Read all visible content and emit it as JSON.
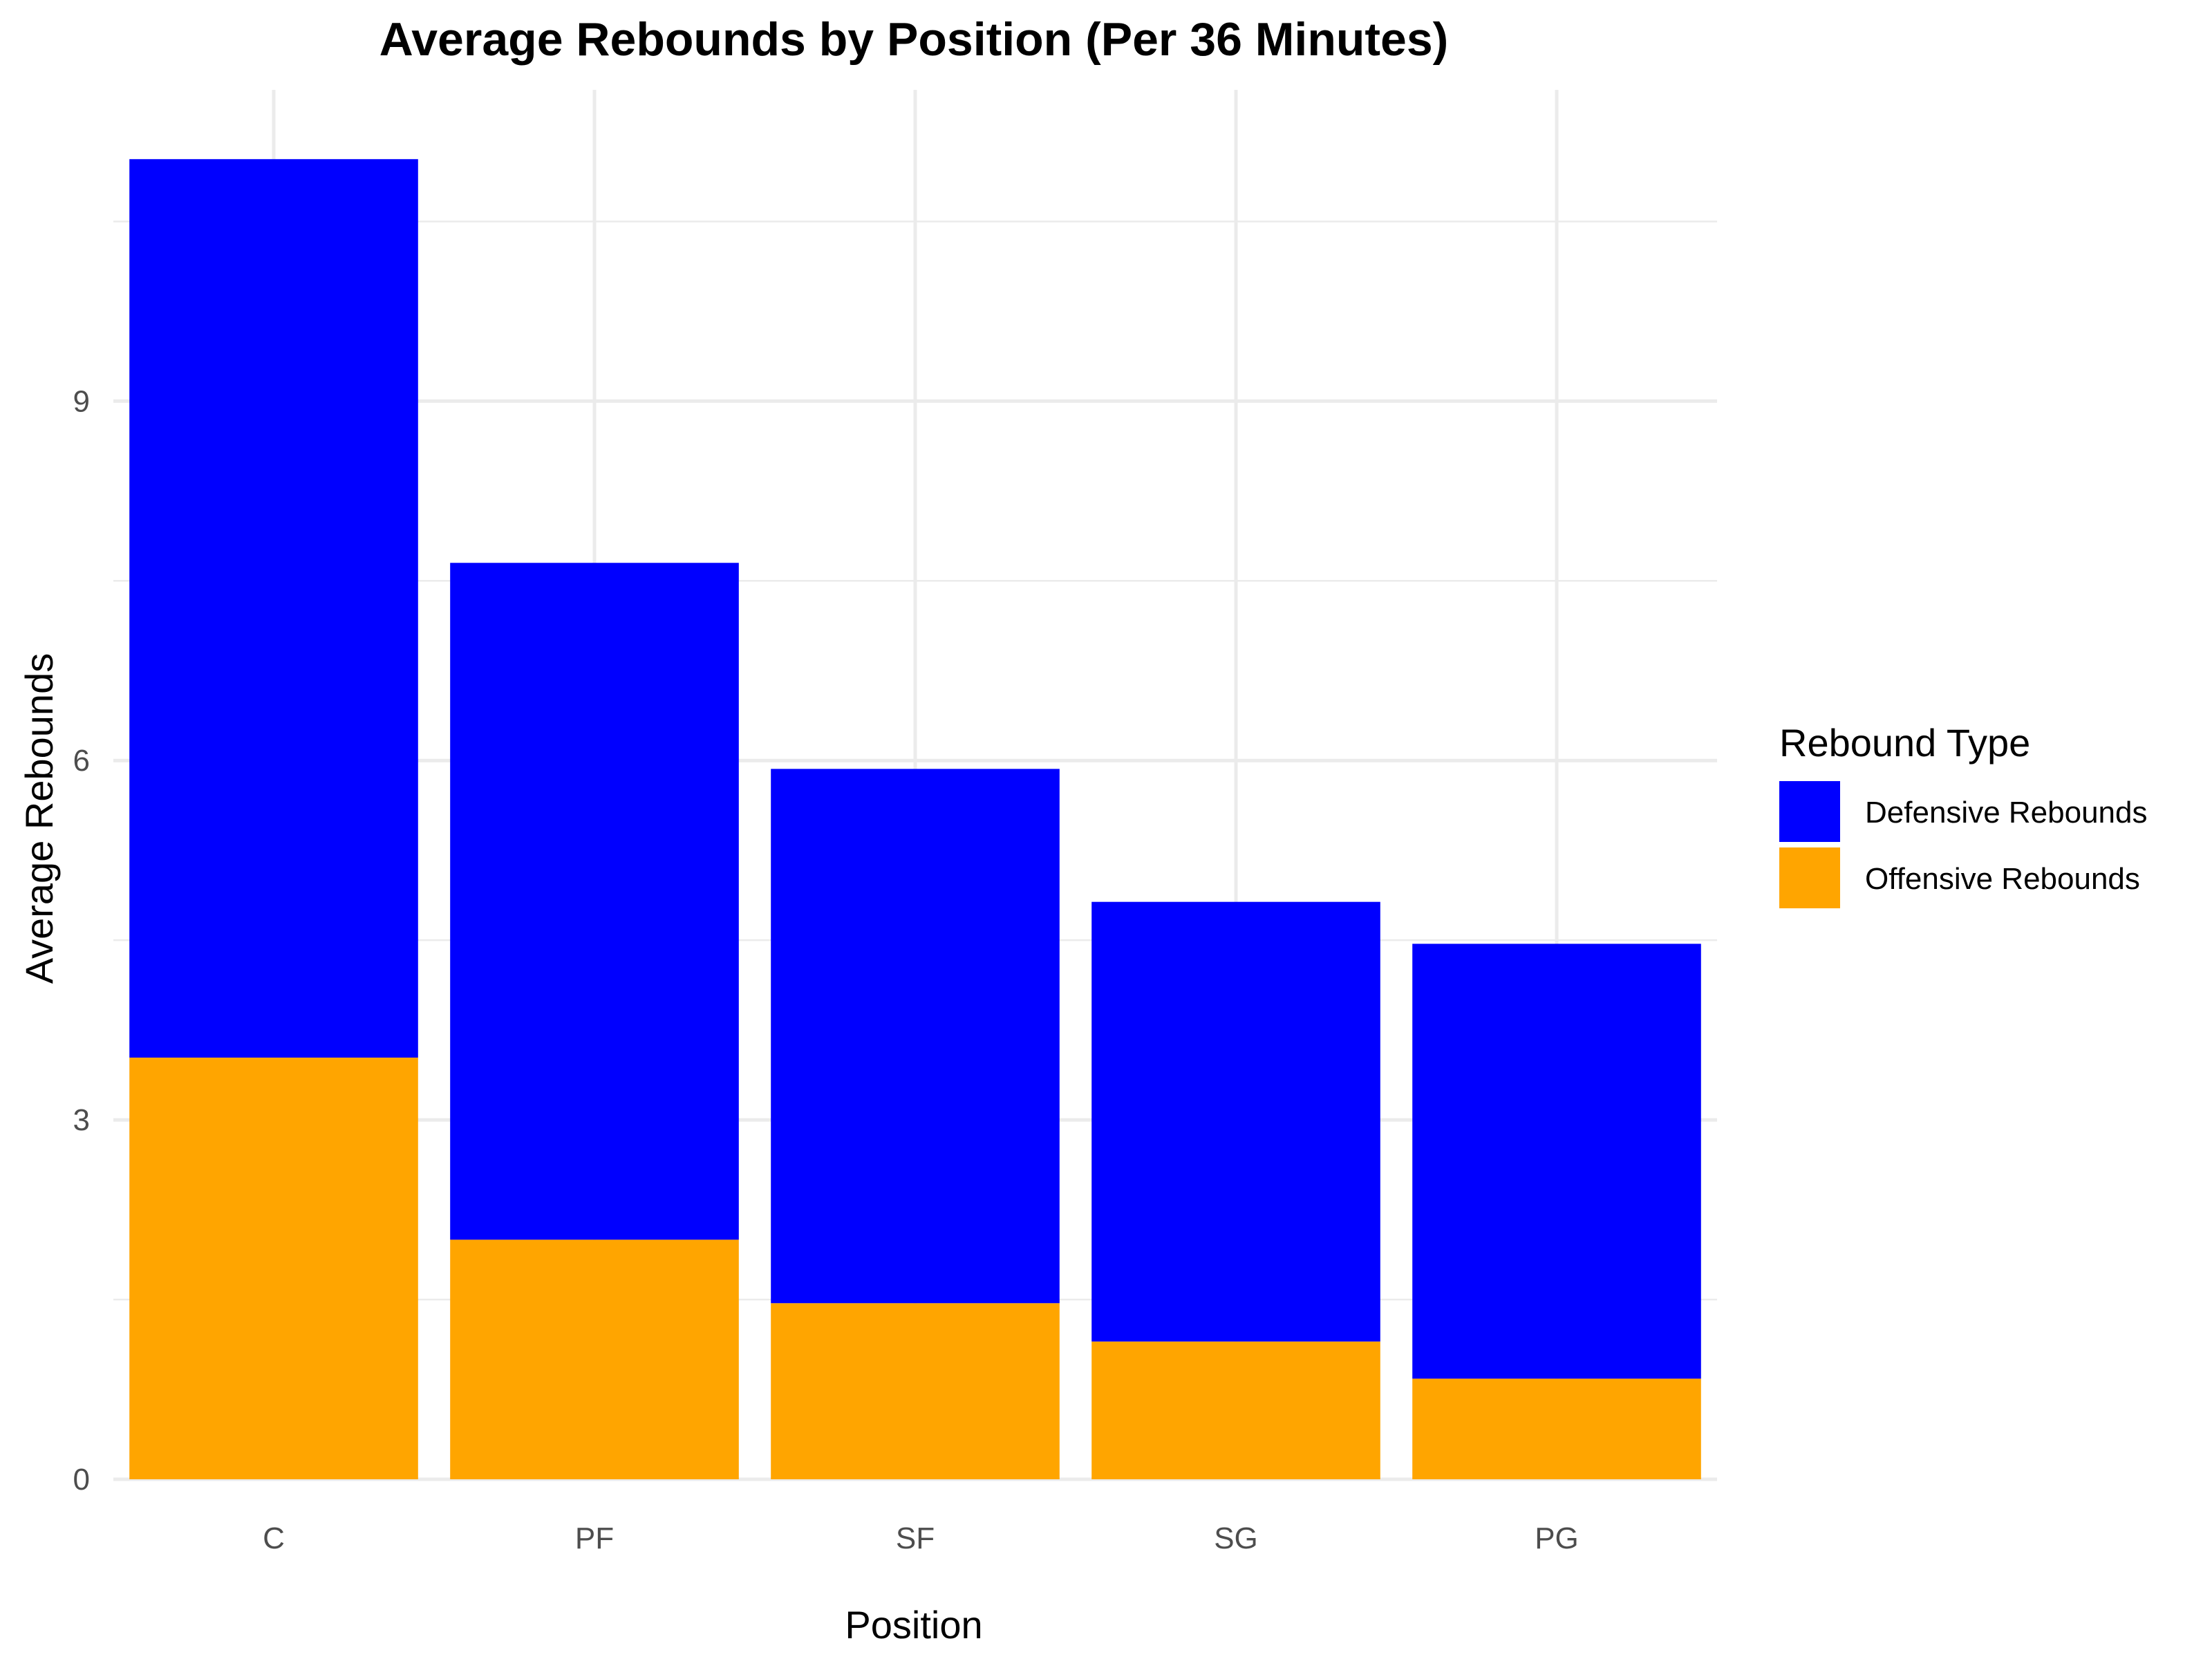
{
  "chart_data": {
    "type": "bar",
    "stacked": true,
    "title": "Average Rebounds by Position (Per 36 Minutes)",
    "xlabel": "Position",
    "ylabel": "Average Rebounds",
    "categories": [
      "C",
      "PF",
      "SF",
      "SG",
      "PG"
    ],
    "series": [
      {
        "name": "Offensive Rebounds",
        "color": "#FFA500",
        "values": [
          3.52,
          2.0,
          1.47,
          1.15,
          0.84
        ]
      },
      {
        "name": "Defensive Rebounds",
        "color": "#0000FF",
        "values": [
          7.5,
          5.65,
          4.46,
          3.67,
          3.63
        ]
      }
    ],
    "legend_order": [
      "Defensive Rebounds",
      "Offensive Rebounds"
    ],
    "ylim": [
      0,
      11.6
    ],
    "y_ticks": [
      0,
      3,
      6,
      9
    ],
    "legend": {
      "title": "Rebound Type",
      "position": "right"
    },
    "grid": true
  }
}
